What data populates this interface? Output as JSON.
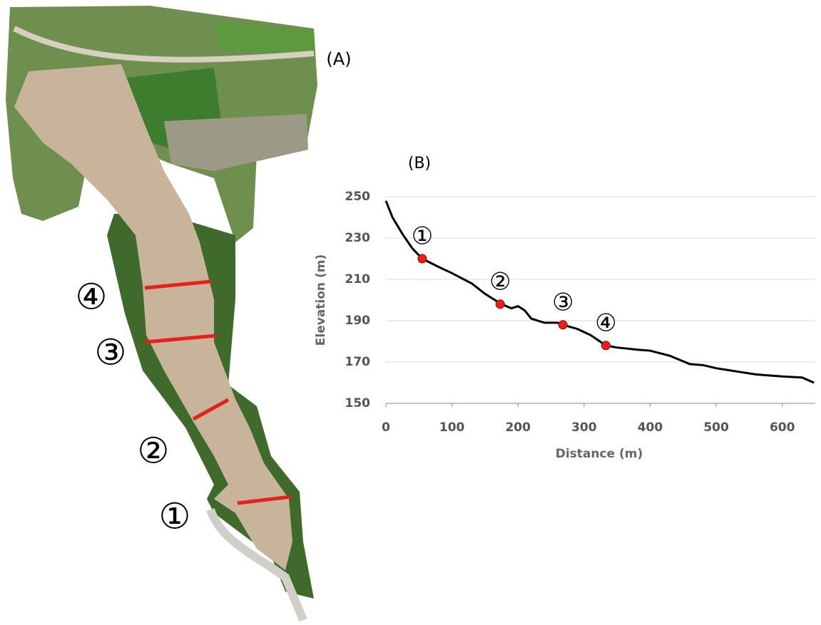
{
  "panel_a": {
    "label": "(A)",
    "section_labels": [
      "①",
      "②",
      "③",
      "④"
    ]
  },
  "chart_data": {
    "type": "line",
    "panel_label": "(B)",
    "x_label": "Distance (m)",
    "y_label": "Elevation (m)",
    "x": [
      0,
      10,
      25,
      40,
      55,
      80,
      100,
      130,
      150,
      175,
      190,
      200,
      210,
      220,
      240,
      260,
      268,
      290,
      310,
      333,
      350,
      380,
      400,
      430,
      460,
      480,
      500,
      530,
      560,
      600,
      630,
      648
    ],
    "values": [
      248,
      240,
      232,
      225,
      220,
      216,
      213,
      208,
      203,
      198,
      196,
      197,
      195,
      191,
      189,
      189,
      188,
      186,
      183,
      178,
      177,
      176,
      175.5,
      173,
      169,
      168.5,
      167,
      165.5,
      164,
      163,
      162.5,
      160
    ],
    "color": "#000000",
    "markers": {
      "x": [
        55,
        173,
        268,
        333
      ],
      "values": [
        220,
        198,
        188,
        178
      ],
      "labels": [
        "①",
        "②",
        "③",
        "④"
      ],
      "color": "#e8201c"
    },
    "xlim": [
      0,
      650
    ],
    "xticks": [
      0,
      100,
      200,
      300,
      400,
      500,
      600
    ],
    "ylim": [
      150,
      250
    ],
    "yticks": [
      150,
      170,
      190,
      210,
      230,
      250
    ],
    "grid": true
  }
}
